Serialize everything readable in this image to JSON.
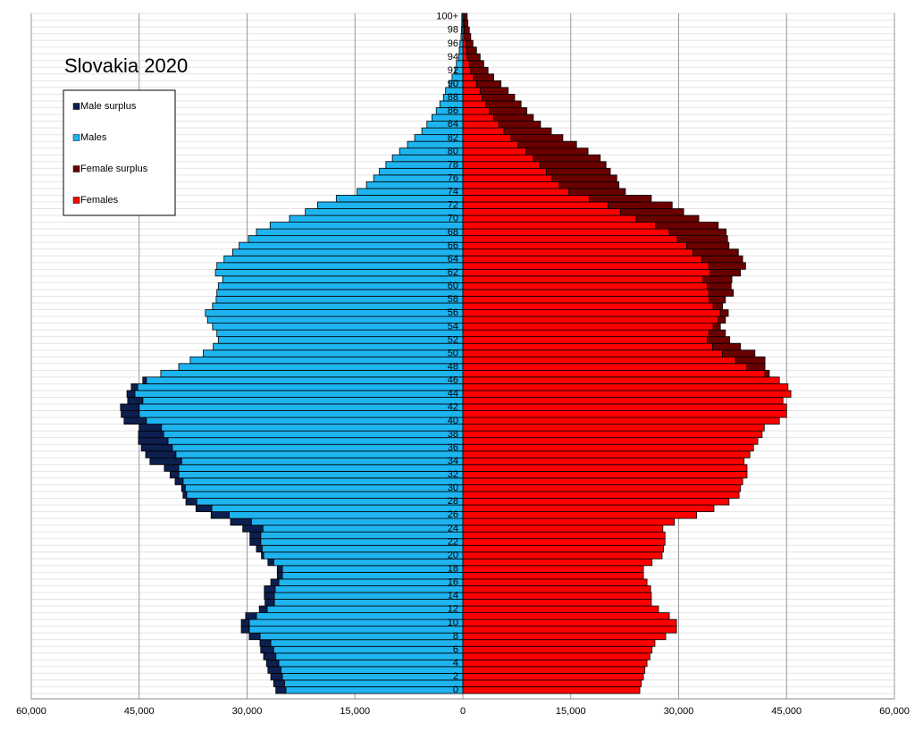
{
  "chart_data": {
    "type": "population-pyramid",
    "title": "Slovakia 2020",
    "categories": [
      "0",
      null,
      "2",
      null,
      "4",
      null,
      "6",
      null,
      "8",
      null,
      "10",
      null,
      "12",
      null,
      "14",
      null,
      "16",
      null,
      "18",
      null,
      "20",
      null,
      "22",
      null,
      "24",
      null,
      "26",
      null,
      "28",
      null,
      "30",
      null,
      "32",
      null,
      "34",
      null,
      "36",
      null,
      "38",
      null,
      "40",
      null,
      "42",
      null,
      "44",
      null,
      "46",
      null,
      "48",
      null,
      "50",
      null,
      "52",
      null,
      "54",
      null,
      "56",
      null,
      "58",
      null,
      "60",
      null,
      "62",
      null,
      "64",
      null,
      "66",
      null,
      "68",
      null,
      "70",
      null,
      "72",
      null,
      "74",
      null,
      "76",
      null,
      "78",
      null,
      "80",
      null,
      "82",
      null,
      "84",
      null,
      "86",
      null,
      "88",
      null,
      "90",
      null,
      "92",
      null,
      "94",
      null,
      "96",
      null,
      "98",
      null,
      "100+"
    ],
    "series": [
      {
        "name": "Males",
        "color": "#1eb4f0",
        "surplus_name": "Male surplus",
        "surplus_color": "#0d1f4f",
        "side": "left",
        "values": [
          26000,
          26300,
          26700,
          27100,
          27300,
          27700,
          28100,
          28200,
          29700,
          30800,
          30800,
          30200,
          28300,
          27500,
          27600,
          27600,
          26700,
          25800,
          25800,
          27100,
          28000,
          28700,
          29600,
          29600,
          30600,
          32300,
          35000,
          37100,
          38500,
          38900,
          39100,
          40000,
          40700,
          41500,
          43500,
          44100,
          44700,
          45100,
          45100,
          45000,
          47100,
          47500,
          47600,
          46600,
          46700,
          46100,
          44500,
          42000,
          39500,
          37900,
          36100,
          34700,
          34000,
          34200,
          34800,
          35500,
          35800,
          34800,
          34300,
          34200,
          34000,
          33400,
          34400,
          34200,
          33200,
          32000,
          31100,
          29800,
          28700,
          26800,
          24100,
          21900,
          20200,
          17600,
          14700,
          13400,
          12400,
          11600,
          10700,
          9800,
          8800,
          7700,
          6700,
          5700,
          5000,
          4300,
          3700,
          3200,
          2700,
          2400,
          1900,
          1500,
          1100,
          900,
          600,
          500,
          400,
          250,
          200,
          150,
          150
        ]
      },
      {
        "name": "Females",
        "color": "#ff0000",
        "surplus_name": "Female surplus",
        "surplus_color": "#6b0000",
        "side": "right",
        "values": [
          24600,
          24800,
          25100,
          25300,
          25600,
          26000,
          26300,
          26700,
          28200,
          29700,
          29700,
          28700,
          27200,
          26200,
          26200,
          26100,
          25600,
          25100,
          25100,
          26300,
          27700,
          27900,
          28100,
          28100,
          27800,
          29400,
          32500,
          34900,
          37000,
          38400,
          38600,
          38900,
          39500,
          39500,
          39100,
          39900,
          40400,
          41000,
          41600,
          41900,
          44000,
          45000,
          45000,
          44500,
          45600,
          45200,
          44000,
          42600,
          42000,
          42000,
          40600,
          38600,
          37100,
          36500,
          35800,
          36500,
          36900,
          36100,
          36500,
          37600,
          37300,
          37400,
          38600,
          39300,
          38900,
          38300,
          37000,
          36800,
          36600,
          35500,
          32800,
          30700,
          29100,
          26200,
          22600,
          21700,
          21400,
          20500,
          19900,
          19100,
          17400,
          15800,
          13900,
          12300,
          10800,
          9800,
          8900,
          8100,
          7200,
          6300,
          5300,
          4300,
          3500,
          2900,
          2400,
          1900,
          1400,
          1100,
          900,
          700,
          600
        ]
      }
    ],
    "xlim": [
      0,
      60000
    ],
    "xticks": [
      0,
      {
        "value": 15000,
        "label": "15,000"
      },
      {
        "value": 30000,
        "label": "30,000"
      },
      {
        "value": 45000,
        "label": "45,000"
      },
      {
        "value": 60000,
        "label": "60,000"
      }
    ],
    "grid": true
  }
}
